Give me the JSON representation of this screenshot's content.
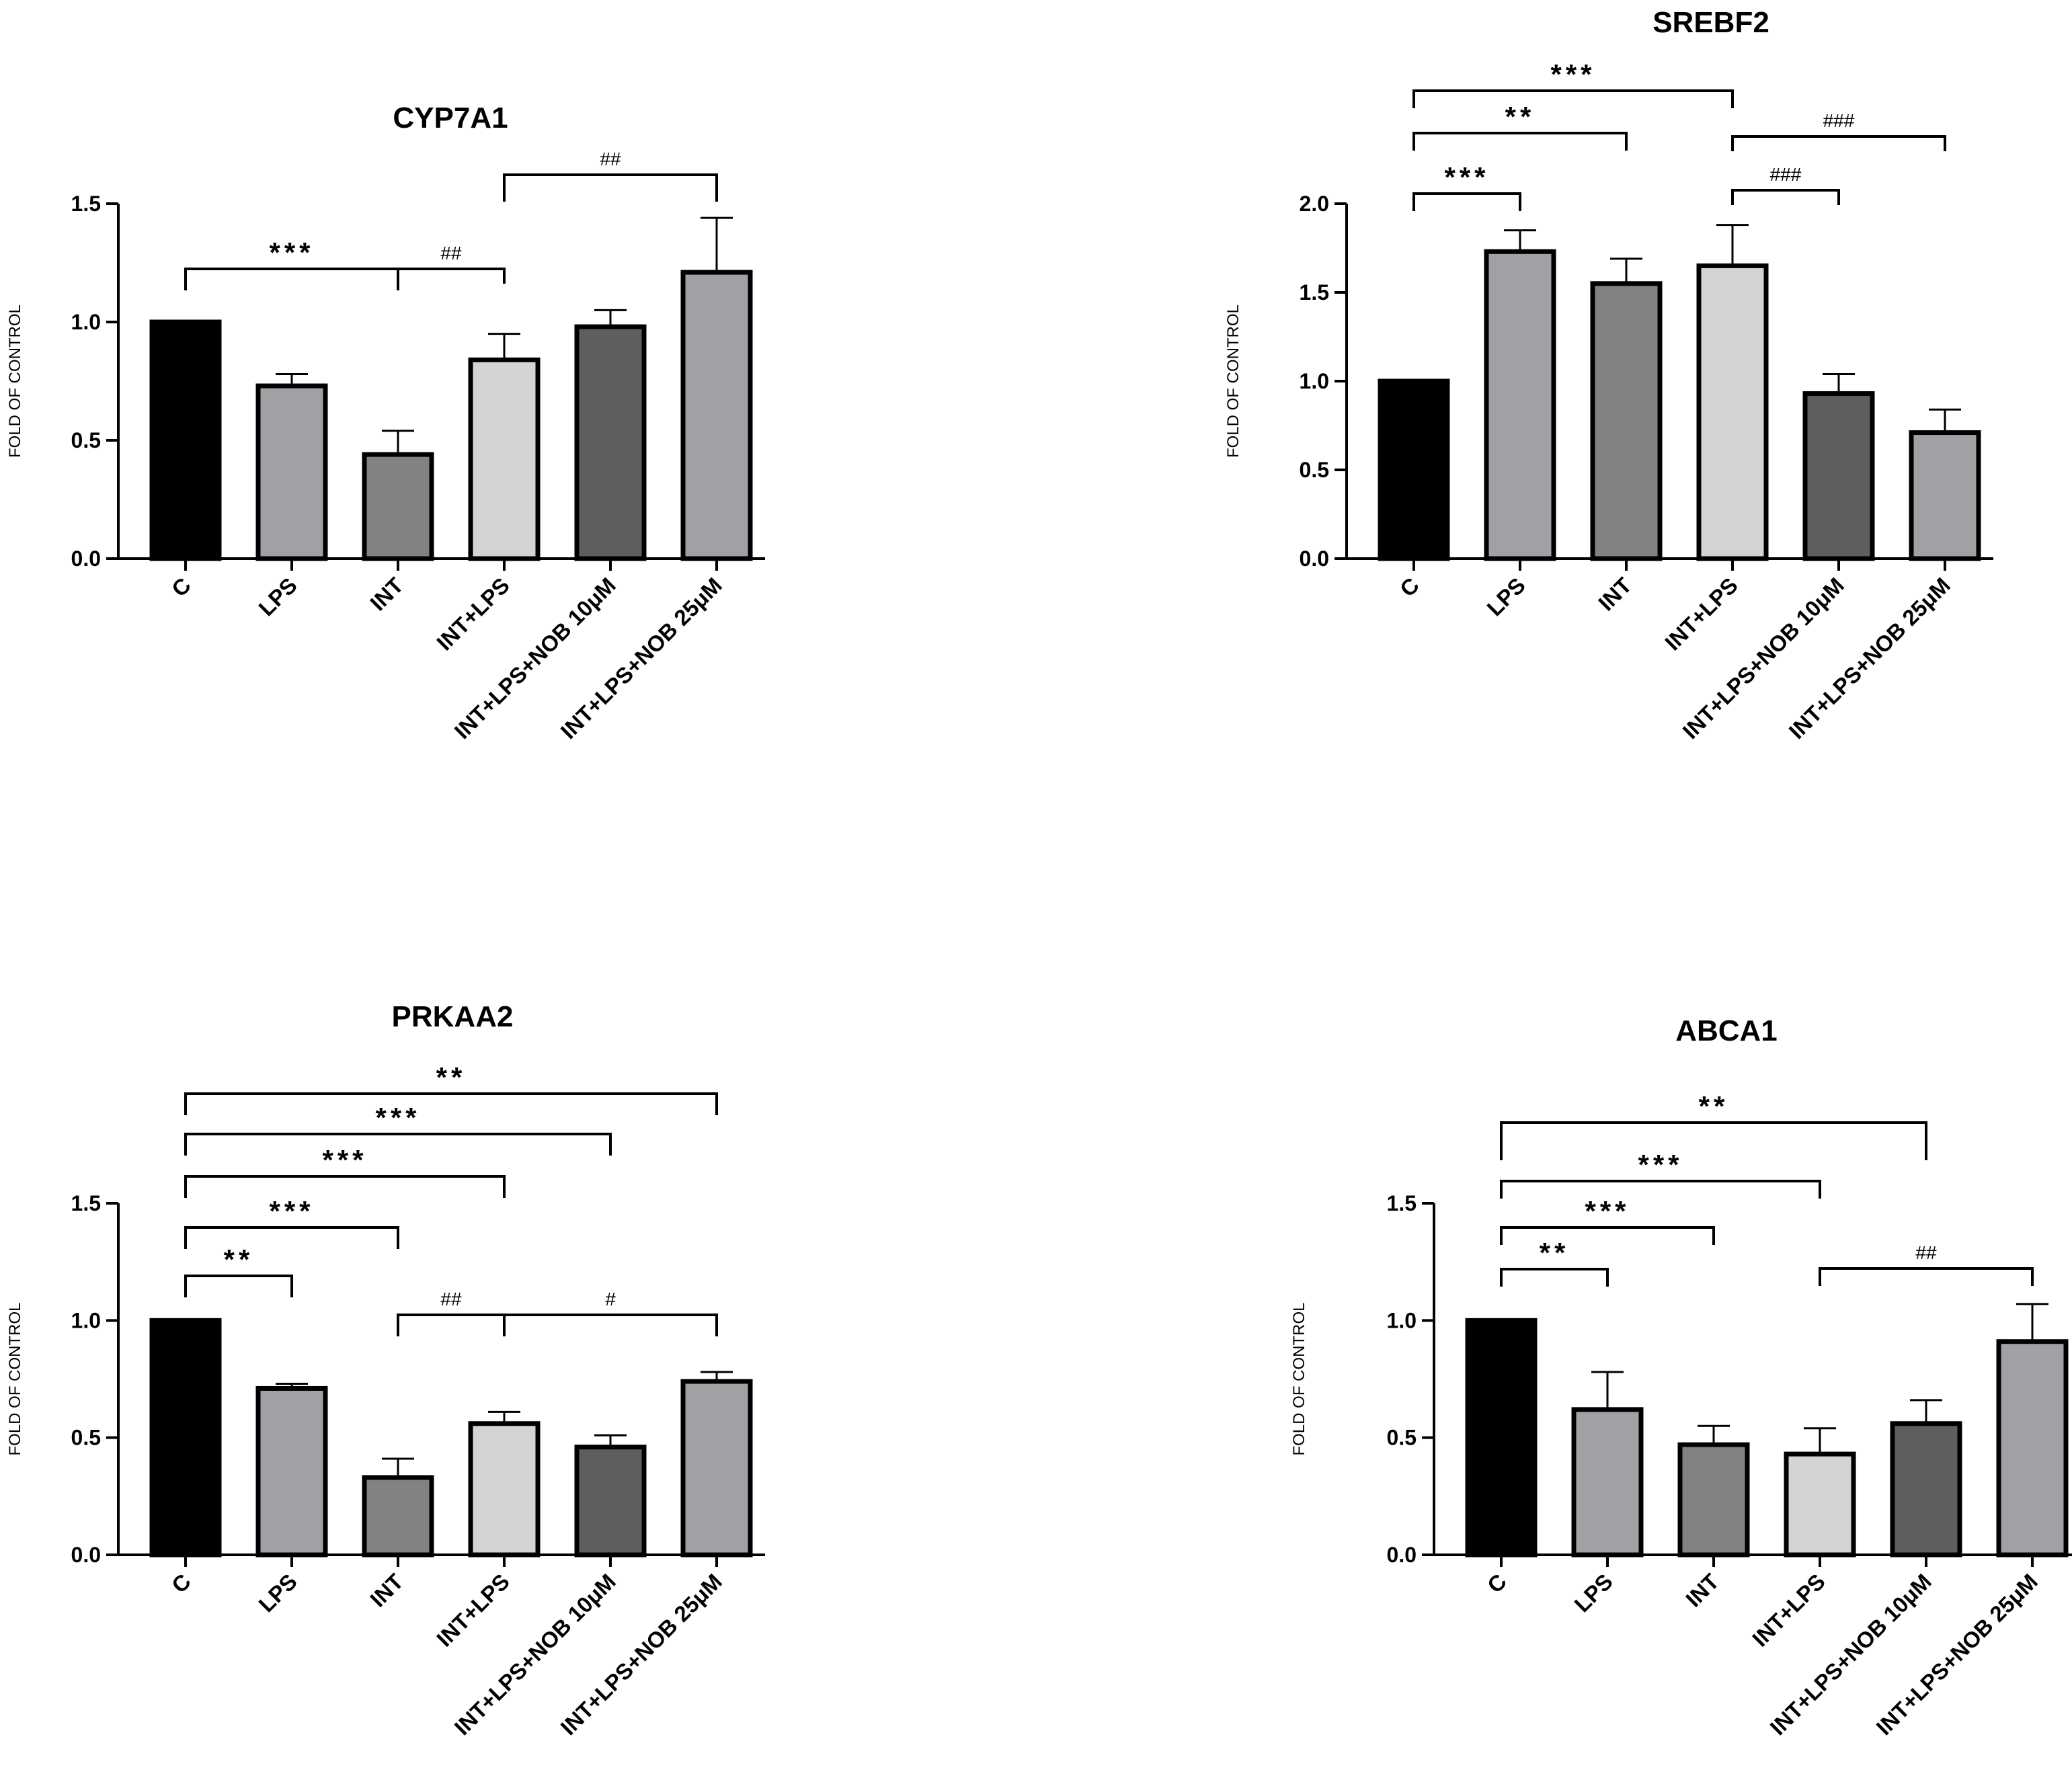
{
  "figure": {
    "colors": {
      "c": "#000000",
      "lps": "#a1a1a5",
      "int": "#828282",
      "int_lps": "#d4d4d4",
      "nob10": "#5e5e5e",
      "nob25": "#a1a1a5",
      "outline": "#000000"
    }
  },
  "chart_data": [
    {
      "type": "bar",
      "title": "CYP7A1",
      "ylabel": "FOLD OF CONTROL",
      "xlabel": "",
      "ylim": [
        0,
        1.5
      ],
      "yticks": [
        0.0,
        0.5,
        1.0,
        1.5
      ],
      "ytick_labels": [
        "0.0",
        "0.5",
        "1.0",
        "1.5"
      ],
      "categories": [
        "C",
        "LPS",
        "INT",
        "INT+LPS",
        "INT+LPS+NOB 10μM",
        "INT+LPS+NOB 25μM"
      ],
      "values": [
        1.0,
        0.73,
        0.44,
        0.84,
        0.98,
        1.21
      ],
      "errors": [
        0,
        0.05,
        0.1,
        0.11,
        0.07,
        0.23
      ],
      "annotations": [
        {
          "from": 0,
          "to": 2,
          "label": "***"
        },
        {
          "from": 2,
          "to": 3,
          "label": "##"
        },
        {
          "from": 3,
          "to": 5,
          "label": "##"
        }
      ]
    },
    {
      "type": "bar",
      "title": "SREBF2",
      "ylabel": "FOLD OF CONTROL",
      "xlabel": "",
      "ylim": [
        0,
        2.0
      ],
      "yticks": [
        0.0,
        0.5,
        1.0,
        1.5,
        2.0
      ],
      "ytick_labels": [
        "0.0",
        "0.5",
        "1.0",
        "1.5",
        "2.0"
      ],
      "categories": [
        "C",
        "LPS",
        "INT",
        "INT+LPS",
        "INT+LPS+NOB 10μM",
        "INT+LPS+NOB 25μM"
      ],
      "values": [
        1.0,
        1.73,
        1.55,
        1.65,
        0.93,
        0.71
      ],
      "errors": [
        0,
        0.12,
        0.14,
        0.23,
        0.11,
        0.13
      ],
      "annotations": [
        {
          "from": 0,
          "to": 1,
          "label": "***"
        },
        {
          "from": 0,
          "to": 2,
          "label": "**"
        },
        {
          "from": 0,
          "to": 3,
          "label": "***"
        },
        {
          "from": 3,
          "to": 4,
          "label": "###"
        },
        {
          "from": 3,
          "to": 5,
          "label": "###"
        }
      ]
    },
    {
      "type": "bar",
      "title": "PRKAA2",
      "ylabel": "FOLD OF CONTROL",
      "xlabel": "",
      "ylim": [
        0,
        1.5
      ],
      "yticks": [
        0.0,
        0.5,
        1.0,
        1.5
      ],
      "ytick_labels": [
        "0.0",
        "0.5",
        "1.0",
        "1.5"
      ],
      "categories": [
        "C",
        "LPS",
        "INT",
        "INT+LPS",
        "INT+LPS+NOB 10μM",
        "INT+LPS+NOB 25μM"
      ],
      "values": [
        1.0,
        0.71,
        0.33,
        0.56,
        0.46,
        0.74
      ],
      "errors": [
        0,
        0.02,
        0.08,
        0.05,
        0.05,
        0.04
      ],
      "annotations": [
        {
          "from": 0,
          "to": 1,
          "label": "**"
        },
        {
          "from": 0,
          "to": 2,
          "label": "***"
        },
        {
          "from": 0,
          "to": 3,
          "label": "***"
        },
        {
          "from": 0,
          "to": 4,
          "label": "***"
        },
        {
          "from": 0,
          "to": 5,
          "label": "**"
        },
        {
          "from": 2,
          "to": 3,
          "label": "##"
        },
        {
          "from": 3,
          "to": 5,
          "label": "#"
        }
      ]
    },
    {
      "type": "bar",
      "title": "ABCA1",
      "ylabel": "FOLD OF CONTROL",
      "xlabel": "",
      "ylim": [
        0,
        1.5
      ],
      "yticks": [
        0.0,
        0.5,
        1.0,
        1.5
      ],
      "ytick_labels": [
        "0.0",
        "0.5",
        "1.0",
        "1.5"
      ],
      "categories": [
        "C",
        "LPS",
        "INT",
        "INT+LPS",
        "INT+LPS+NOB 10μM",
        "INT+LPS+NOB 25μM"
      ],
      "values": [
        1.0,
        0.62,
        0.47,
        0.43,
        0.56,
        0.91
      ],
      "errors": [
        0,
        0.16,
        0.08,
        0.11,
        0.1,
        0.16
      ],
      "annotations": [
        {
          "from": 0,
          "to": 1,
          "label": "**"
        },
        {
          "from": 0,
          "to": 2,
          "label": "***"
        },
        {
          "from": 0,
          "to": 3,
          "label": "***"
        },
        {
          "from": 0,
          "to": 4,
          "label": "**"
        },
        {
          "from": 3,
          "to": 5,
          "label": "##"
        }
      ]
    }
  ]
}
